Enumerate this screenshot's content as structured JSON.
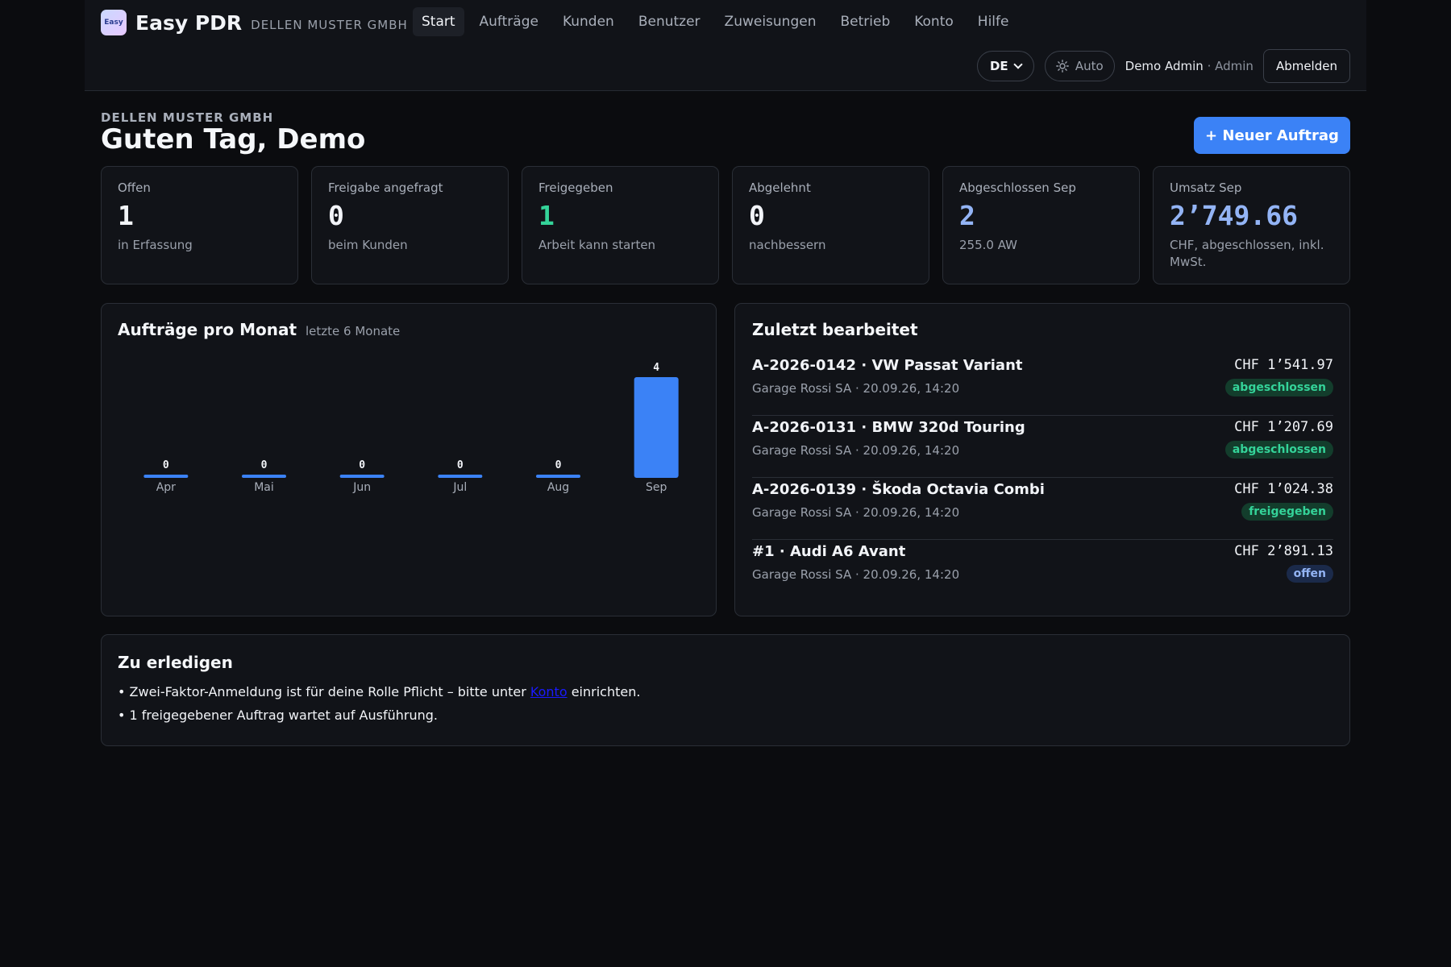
{
  "brand": {
    "logo_text": "Easy",
    "name": "Easy PDR",
    "company": "DELLEN MUSTER GMBH"
  },
  "nav": [
    {
      "label": "Start",
      "active": true
    },
    {
      "label": "Aufträge"
    },
    {
      "label": "Kunden"
    },
    {
      "label": "Benutzer"
    },
    {
      "label": "Zuweisungen"
    },
    {
      "label": "Betrieb"
    },
    {
      "label": "Konto"
    },
    {
      "label": "Hilfe"
    }
  ],
  "header": {
    "language": "DE",
    "theme": "Auto",
    "user_name": "Demo Admin",
    "user_role": "· Admin",
    "logout_label": "Abmelden"
  },
  "page": {
    "company": "DELLEN MUSTER GMBH",
    "greeting": "Guten Tag, Demo",
    "new_order_label": "+ Neuer Auftrag"
  },
  "stats": [
    {
      "label": "Offen",
      "value": "1",
      "sub": "in Erfassung",
      "color": "#f2f4f8"
    },
    {
      "label": "Freigabe angefragt",
      "value": "0",
      "sub": "beim Kunden",
      "color": "#f2f4f8"
    },
    {
      "label": "Freigegeben",
      "value": "1",
      "sub": "Arbeit kann starten",
      "color": "#34d399"
    },
    {
      "label": "Abgelehnt",
      "value": "0",
      "sub": "nachbessern",
      "color": "#f2f4f8"
    },
    {
      "label": "Abgeschlossen Sep",
      "value": "2",
      "sub": "255.0 AW",
      "color": "#93b4f5"
    },
    {
      "label": "Umsatz Sep",
      "value": "2’749.66",
      "sub": "CHF, abgeschlossen, inkl. MwSt.",
      "color": "#93b4f5"
    }
  ],
  "chart": {
    "title": "Aufträge pro Monat",
    "subtitle": "letzte 6 Monate"
  },
  "chart_data": {
    "type": "bar",
    "title": "Aufträge pro Monat",
    "subtitle": "letzte 6 Monate",
    "categories": [
      "Apr",
      "Mai",
      "Jun",
      "Jul",
      "Aug",
      "Sep"
    ],
    "values": [
      0,
      0,
      0,
      0,
      0,
      4
    ],
    "ylim": [
      0,
      4
    ],
    "bar_color": "#3b82f6",
    "grid": false,
    "data_labels": true
  },
  "recent": {
    "title": "Zuletzt bearbeitet",
    "items": [
      {
        "title": "A-2026-0142 · VW Passat Variant",
        "meta": "Garage Rossi SA · 20.09.26, 14:20",
        "amount": "CHF 1’541.97",
        "status": "abgeschlossen",
        "status_color": "#34d399",
        "status_bg": "#133d2c"
      },
      {
        "title": "A-2026-0131 · BMW 320d Touring",
        "meta": "Garage Rossi SA · 20.09.26, 14:20",
        "amount": "CHF 1’207.69",
        "status": "abgeschlossen",
        "status_color": "#34d399",
        "status_bg": "#133d2c"
      },
      {
        "title": "A-2026-0139 · Škoda Octavia Combi",
        "meta": "Garage Rossi SA · 20.09.26, 14:20",
        "amount": "CHF 1’024.38",
        "status": "freigegeben",
        "status_color": "#34d399",
        "status_bg": "#133d2c"
      },
      {
        "title": "#1 · Audi A6 Avant",
        "meta": "Garage Rossi SA · 20.09.26, 14:20",
        "amount": "CHF 2’891.13",
        "status": "offen",
        "status_color": "#93b4f5",
        "status_bg": "#1b2a4a"
      }
    ]
  },
  "todo": {
    "title": "Zu erledigen",
    "item1_before": "• Zwei-Faktor-Anmeldung ist für deine Rolle Pflicht – bitte unter ",
    "item1_link": "Konto",
    "item1_after": " einrichten.",
    "item2": "• 1 freigegebener Auftrag wartet auf Ausführung."
  }
}
